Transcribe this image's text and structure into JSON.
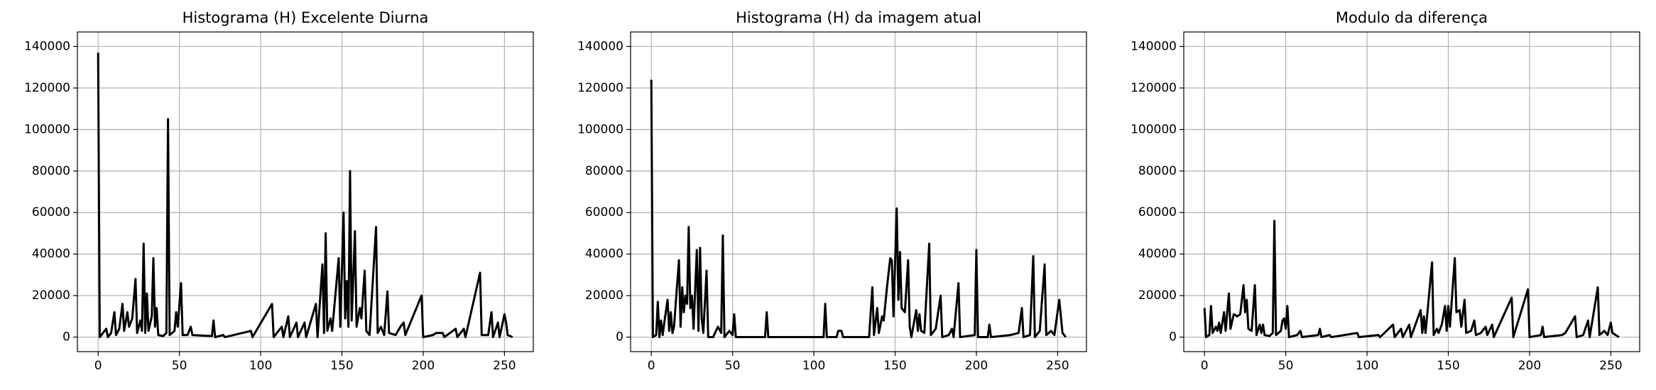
{
  "chart_data": [
    {
      "type": "line",
      "title": "Histograma (H) Excelente Diurna",
      "color": "#000000",
      "grid": true,
      "xlim": [
        -12.75,
        267.75
      ],
      "ylim": [
        -7000,
        147000
      ],
      "xticks": [
        0,
        50,
        100,
        150,
        200,
        250
      ],
      "yticks": [
        0,
        20000,
        40000,
        60000,
        80000,
        100000,
        120000,
        140000
      ],
      "x": [
        0,
        1,
        3,
        5,
        6,
        8,
        10,
        11,
        13,
        15,
        16,
        18,
        19,
        21,
        23,
        24,
        26,
        27,
        28,
        29,
        30,
        31,
        33,
        34,
        35,
        36,
        37,
        40,
        42,
        43,
        44,
        47,
        48,
        49,
        51,
        52,
        55,
        57,
        58,
        70,
        71,
        72,
        77,
        78,
        94,
        95,
        107,
        108,
        113,
        114,
        117,
        118,
        122,
        123,
        127,
        128,
        134,
        135,
        138,
        139,
        140,
        141,
        143,
        144,
        148,
        149,
        151,
        152,
        153,
        154,
        155,
        156,
        158,
        159,
        161,
        162,
        164,
        165,
        167,
        171,
        172,
        174,
        176,
        178,
        179,
        183,
        186,
        188,
        189,
        199,
        200,
        206,
        208,
        212,
        213,
        220,
        221,
        225,
        226,
        235,
        236,
        240,
        242,
        243,
        246,
        247,
        250,
        251,
        252,
        255
      ],
      "values": [
        137000,
        0,
        2000,
        4000,
        0,
        2000,
        12000,
        1000,
        4000,
        16000,
        3000,
        12000,
        5000,
        9000,
        28000,
        2000,
        8000,
        3000,
        45000,
        2000,
        21000,
        3000,
        10000,
        38000,
        5000,
        14000,
        1000,
        500,
        2000,
        105000,
        1000,
        3000,
        12000,
        5000,
        26000,
        1000,
        1000,
        5000,
        1000,
        500,
        8000,
        0,
        1000,
        0,
        3000,
        0,
        16000,
        0,
        5000,
        0,
        10000,
        0,
        7000,
        0,
        7000,
        0,
        16000,
        0,
        35000,
        2000,
        50000,
        3000,
        9000,
        3000,
        38000,
        5000,
        60000,
        9000,
        27000,
        5000,
        80000,
        8000,
        51000,
        5000,
        14000,
        9000,
        32000,
        3000,
        1000,
        53000,
        2000,
        5000,
        1000,
        22000,
        2000,
        1000,
        5000,
        7000,
        1000,
        20000,
        0,
        1000,
        2000,
        2000,
        0,
        4000,
        0,
        4000,
        0,
        31000,
        1000,
        1000,
        12000,
        0,
        7000,
        0,
        11000,
        7000,
        1000,
        0
      ]
    },
    {
      "type": "line",
      "title": "Histograma (H) da imagem atual",
      "color": "#000000",
      "grid": true,
      "xlim": [
        -12.75,
        267.75
      ],
      "ylim": [
        -7000,
        147000
      ],
      "xticks": [
        0,
        50,
        100,
        150,
        200,
        250
      ],
      "yticks": [
        0,
        20000,
        40000,
        60000,
        80000,
        100000,
        120000,
        140000
      ],
      "x": [
        0,
        1,
        3,
        4,
        5,
        6,
        7,
        8,
        10,
        11,
        12,
        13,
        14,
        15,
        17,
        18,
        19,
        20,
        21,
        22,
        23,
        24,
        25,
        26,
        28,
        29,
        30,
        31,
        32,
        34,
        35,
        38,
        41,
        43,
        44,
        45,
        48,
        50,
        51,
        52,
        70,
        71,
        72,
        106,
        107,
        108,
        114,
        115,
        117,
        118,
        134,
        136,
        137,
        139,
        140,
        142,
        143,
        145,
        147,
        148,
        149,
        151,
        152,
        153,
        154,
        156,
        158,
        159,
        160,
        163,
        164,
        165,
        166,
        168,
        171,
        172,
        175,
        178,
        179,
        183,
        185,
        186,
        189,
        190,
        199,
        200,
        201,
        207,
        208,
        209,
        221,
        226,
        228,
        229,
        233,
        235,
        236,
        239,
        242,
        243,
        246,
        248,
        251,
        252,
        253,
        255
      ],
      "values": [
        124000,
        0,
        1000,
        17000,
        0,
        8000,
        1000,
        7000,
        18000,
        3000,
        12000,
        2000,
        5000,
        16000,
        37000,
        5000,
        24000,
        12000,
        20000,
        16000,
        53000,
        14000,
        20000,
        4000,
        42000,
        3000,
        43000,
        9000,
        2000,
        32000,
        0,
        0,
        5000,
        2000,
        49000,
        0,
        3000,
        1000,
        11000,
        0,
        0,
        12000,
        0,
        0,
        16000,
        0,
        0,
        3000,
        3000,
        0,
        0,
        24000,
        1000,
        14000,
        2000,
        10000,
        8000,
        24000,
        38000,
        37000,
        10000,
        62000,
        18000,
        41000,
        14000,
        12000,
        37000,
        5000,
        0,
        13000,
        3000,
        11000,
        3000,
        2000,
        45000,
        1000,
        4000,
        20000,
        0,
        1000,
        4000,
        0,
        26000,
        0,
        1000,
        42000,
        0,
        0,
        6000,
        0,
        1000,
        2000,
        14000,
        0,
        1000,
        39000,
        0,
        3000,
        35000,
        1000,
        3000,
        1000,
        18000,
        10000,
        2000,
        0
      ]
    },
    {
      "type": "line",
      "title": "Modulo da diferença",
      "color": "#000000",
      "grid": true,
      "xlim": [
        -12.75,
        267.75
      ],
      "ylim": [
        -7000,
        147000
      ],
      "xticks": [
        0,
        50,
        100,
        150,
        200,
        250
      ],
      "yticks": [
        0,
        20000,
        40000,
        60000,
        80000,
        100000,
        120000,
        140000
      ],
      "x": [
        0,
        1,
        3,
        4,
        5,
        7,
        8,
        9,
        10,
        12,
        13,
        15,
        16,
        18,
        20,
        22,
        24,
        25,
        26,
        27,
        29,
        31,
        32,
        34,
        35,
        36,
        37,
        40,
        42,
        43,
        44,
        47,
        48,
        49,
        50,
        51,
        52,
        57,
        59,
        60,
        70,
        71,
        72,
        77,
        78,
        94,
        95,
        107,
        108,
        116,
        117,
        121,
        122,
        126,
        127,
        133,
        134,
        135,
        136,
        140,
        141,
        143,
        144,
        146,
        148,
        149,
        150,
        151,
        154,
        155,
        157,
        158,
        160,
        161,
        164,
        166,
        167,
        170,
        173,
        174,
        177,
        178,
        189,
        190,
        199,
        200,
        207,
        208,
        209,
        220,
        222,
        228,
        229,
        233,
        236,
        237,
        242,
        243,
        246,
        248,
        250,
        251,
        253,
        255
      ],
      "values": [
        14000,
        0,
        1000,
        15000,
        2000,
        5000,
        3000,
        7000,
        2000,
        12000,
        3000,
        21000,
        4000,
        11000,
        10000,
        11000,
        25000,
        12000,
        18000,
        4000,
        3000,
        25000,
        1000,
        6000,
        2000,
        6000,
        1000,
        500,
        2000,
        56000,
        1000,
        3000,
        8000,
        9000,
        4000,
        15000,
        0,
        1000,
        3000,
        0,
        1000,
        4000,
        0,
        1000,
        0,
        2000,
        0,
        1000,
        0,
        6000,
        0,
        4000,
        0,
        6000,
        0,
        13000,
        2000,
        10000,
        2000,
        36000,
        1000,
        4000,
        2000,
        6000,
        15000,
        3000,
        15000,
        5000,
        38000,
        12000,
        13000,
        5000,
        18000,
        2000,
        3000,
        8000,
        1000,
        2000,
        5000,
        1000,
        6000,
        0,
        19000,
        0,
        23000,
        0,
        1000,
        5000,
        0,
        1000,
        2000,
        10000,
        0,
        1000,
        8000,
        0,
        24000,
        1000,
        3000,
        1000,
        7000,
        2000,
        1000,
        0
      ]
    }
  ]
}
